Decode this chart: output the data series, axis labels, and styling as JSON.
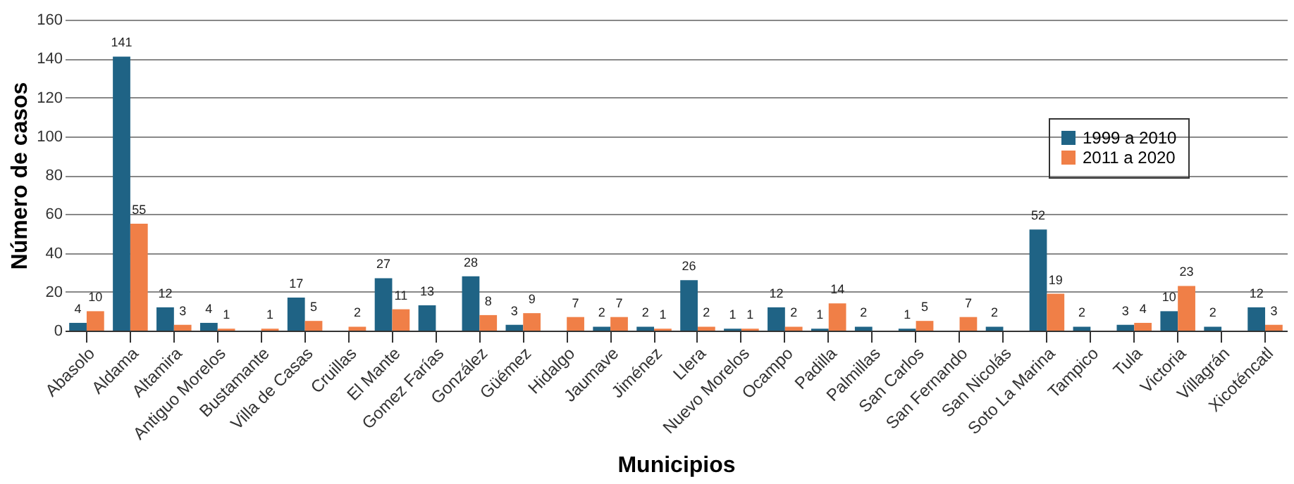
{
  "chart_data": {
    "type": "bar",
    "xlabel": "Municipios",
    "ylabel": "Número de casos",
    "categories": [
      "Abasolo",
      "Aldama",
      "Altamira",
      "Antiguo Morelos",
      "Bustamante",
      "Villa de Casas",
      "Cruillas",
      "El Mante",
      "Gomez Farías",
      "González",
      "Güémez",
      "Hidalgo",
      "Jaumave",
      "Jiménez",
      "Llera",
      "Nuevo Morelos",
      "Ocampo",
      "Padilla",
      "Palmillas",
      "San Carlos",
      "San Fernando",
      "San Nicolás",
      "Soto La Marina",
      "Tampico",
      "Tula",
      "Victoria",
      "Villagrán",
      "Xicoténcatl"
    ],
    "series": [
      {
        "name": "1999 a 2010",
        "color": "#1f6385",
        "values": [
          4,
          141,
          12,
          4,
          null,
          17,
          null,
          27,
          13,
          28,
          3,
          null,
          2,
          2,
          26,
          1,
          12,
          1,
          2,
          1,
          null,
          2,
          52,
          2,
          3,
          10,
          2,
          12
        ]
      },
      {
        "name": "2011 a 2020",
        "color": "#f07f47",
        "values": [
          10,
          55,
          3,
          1,
          1,
          5,
          2,
          11,
          null,
          8,
          9,
          7,
          7,
          1,
          2,
          1,
          2,
          14,
          null,
          5,
          7,
          null,
          19,
          null,
          4,
          23,
          null,
          3
        ]
      }
    ],
    "ylim": [
      0,
      160
    ],
    "yticks": [
      0,
      20,
      40,
      60,
      80,
      100,
      120,
      140,
      160
    ],
    "grid": "y",
    "legend": "top right",
    "data_labels": true
  }
}
